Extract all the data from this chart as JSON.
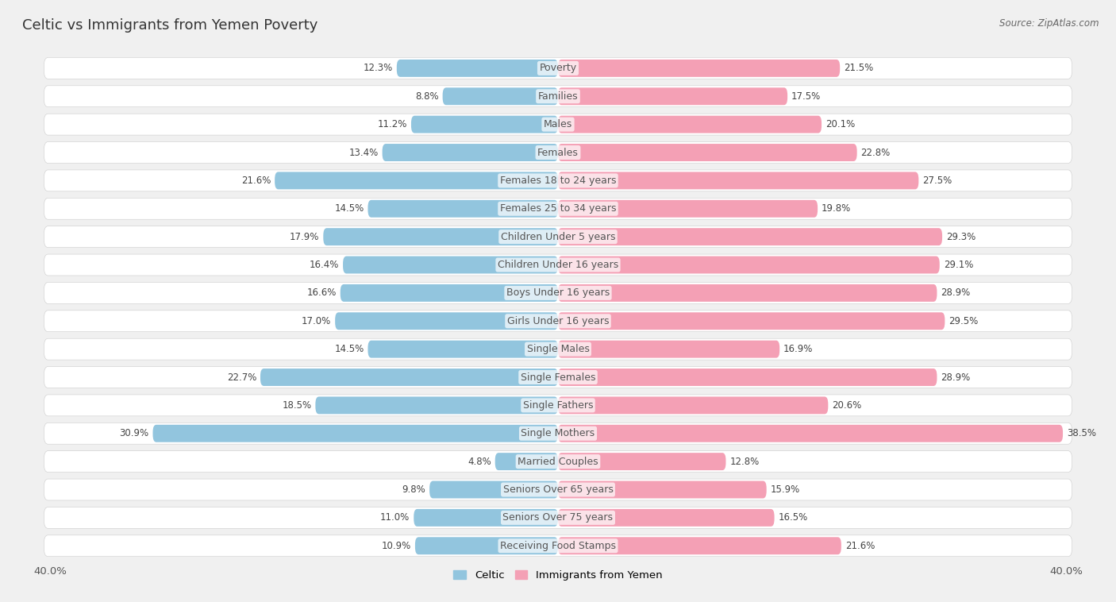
{
  "title": "Celtic vs Immigrants from Yemen Poverty",
  "source": "Source: ZipAtlas.com",
  "categories": [
    "Poverty",
    "Families",
    "Males",
    "Females",
    "Females 18 to 24 years",
    "Females 25 to 34 years",
    "Children Under 5 years",
    "Children Under 16 years",
    "Boys Under 16 years",
    "Girls Under 16 years",
    "Single Males",
    "Single Females",
    "Single Fathers",
    "Single Mothers",
    "Married Couples",
    "Seniors Over 65 years",
    "Seniors Over 75 years",
    "Receiving Food Stamps"
  ],
  "celtic_values": [
    12.3,
    8.8,
    11.2,
    13.4,
    21.6,
    14.5,
    17.9,
    16.4,
    16.6,
    17.0,
    14.5,
    22.7,
    18.5,
    30.9,
    4.8,
    9.8,
    11.0,
    10.9
  ],
  "yemen_values": [
    21.5,
    17.5,
    20.1,
    22.8,
    27.5,
    19.8,
    29.3,
    29.1,
    28.9,
    29.5,
    16.9,
    28.9,
    20.6,
    38.5,
    12.8,
    15.9,
    16.5,
    21.6
  ],
  "celtic_color": "#92c5de",
  "yemen_color": "#f4a0b5",
  "axis_limit": 40.0,
  "bar_height": 0.62,
  "bg_color": "#f0f0f0",
  "row_bg_color": "#ffffff",
  "legend_celtic": "Celtic",
  "legend_yemen": "Immigrants from Yemen",
  "title_fontsize": 13,
  "label_fontsize": 9,
  "value_fontsize": 8.5,
  "xlabel_fontsize": 9.5
}
